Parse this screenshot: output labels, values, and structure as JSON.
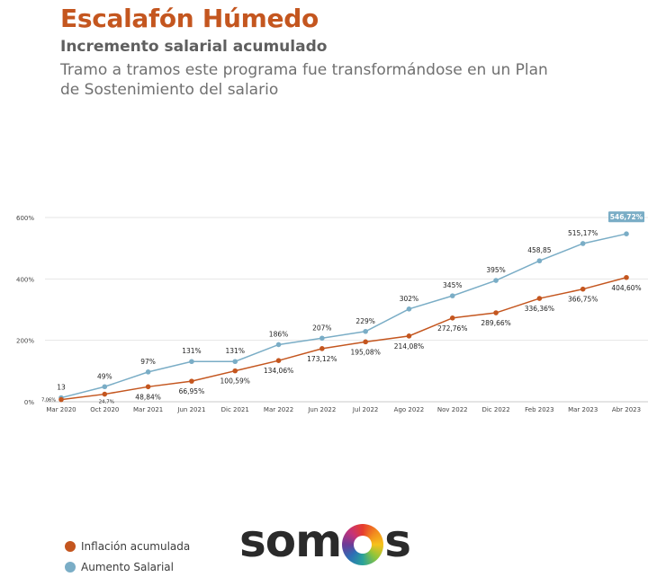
{
  "header": {
    "title": "Escalafón Húmedo",
    "subtitle": "Incremento salarial acumulado",
    "description": "Tramo a tramos este programa fue transformándose en un Plan de Sostenimiento del salario"
  },
  "legend": {
    "inflation_label": "Inflación acumulada",
    "salary_label": "Aumento Salarial"
  },
  "logo": {
    "text_left": "som",
    "text_right": "s"
  },
  "colors": {
    "inflation": "#c4561f",
    "salary": "#7aadc6",
    "grid": "#e6e6e6",
    "callout": "#7aadc6"
  },
  "chart_data": {
    "type": "line",
    "categories": [
      "Mar 2020",
      "Oct 2020",
      "Mar 2021",
      "Jun  2021",
      "Dic 2021",
      "Mar 2022",
      "Jun 2022",
      "Jul 2022",
      "Ago 2022",
      "Nov 2022",
      "Dic 2022",
      "Feb 2023",
      "Mar 2023",
      "Abr 2023"
    ],
    "ylim": [
      0,
      600
    ],
    "yticks": [
      0,
      200,
      400,
      600
    ],
    "ytick_labels": [
      "0%",
      "200%",
      "400%",
      "600%"
    ],
    "grid": true,
    "series": [
      {
        "name": "Aumento Salarial",
        "key": "salary",
        "values": [
          13,
          49,
          97,
          131,
          131,
          186,
          207,
          229,
          302,
          345,
          395,
          458.85,
          515.17,
          546.72
        ],
        "labels": [
          "13",
          "49%",
          "97%",
          "131%",
          "131%",
          "186%",
          "207%",
          "229%",
          "302%",
          "345%",
          "395%",
          "458,85",
          "515,17%",
          "546,72%"
        ]
      },
      {
        "name": "Inflación acumulada",
        "key": "inflation",
        "values": [
          7.06,
          24.7,
          48.84,
          66.95,
          100.59,
          134.06,
          173.12,
          195.08,
          214.08,
          272.76,
          289.66,
          336.36,
          366.75,
          404.6
        ],
        "labels": [
          "7,06%",
          "24,7%",
          "48,84%",
          "66,95%",
          "100,59%",
          "134,06%",
          "173,12%",
          "195,08%",
          "214,08%",
          "272,76%",
          "289,66%",
          "336,36%",
          "366,75%",
          "404,60%"
        ]
      }
    ]
  }
}
